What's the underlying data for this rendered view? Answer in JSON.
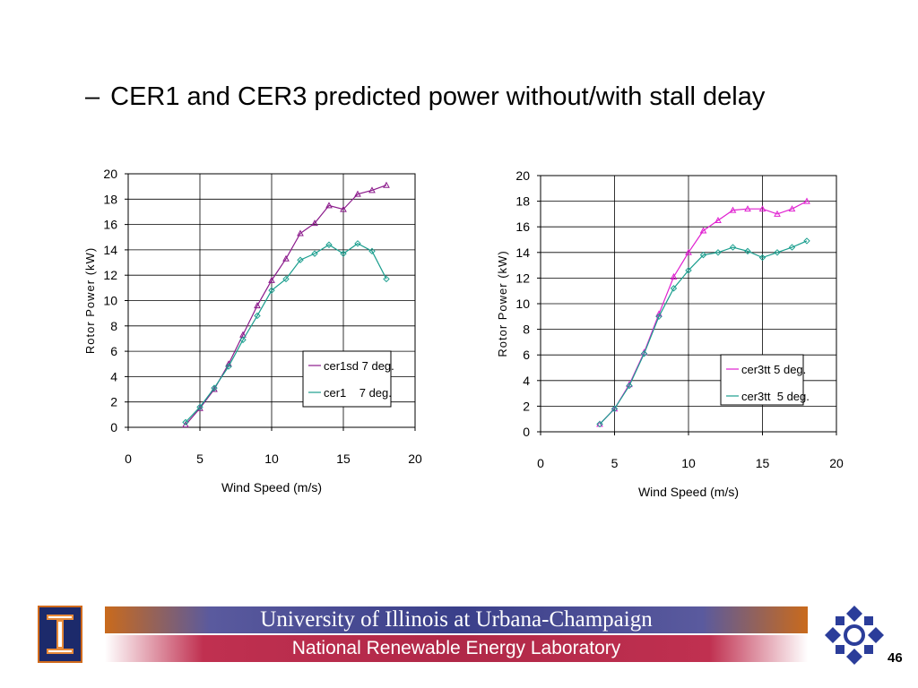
{
  "title": {
    "dash": "–",
    "text": "CER1 and CER3 predicted power without/with stall delay"
  },
  "footer": {
    "university": "University of Illinois at Urbana-Champaign",
    "lab": "National Renewable Energy Laboratory",
    "page": "46"
  },
  "chart_data": [
    {
      "type": "line",
      "xlabel": "Wind Speed (m/s)",
      "ylabel": "Rotor Power (kW)",
      "xlim": [
        0,
        20
      ],
      "ylim": [
        0,
        20
      ],
      "xticks": [
        0,
        5,
        10,
        15,
        20
      ],
      "yticks": [
        0,
        2,
        4,
        6,
        8,
        10,
        12,
        14,
        16,
        18,
        20
      ],
      "grid": true,
      "legend": "lower-right",
      "series": [
        {
          "name": "cer1sd 7 deg.",
          "color": "#8b1a8b",
          "marker": "triangle",
          "x": [
            4,
            5,
            6,
            7,
            8,
            9,
            10,
            11,
            12,
            13,
            14,
            15,
            16,
            17,
            18
          ],
          "y": [
            0.2,
            1.5,
            3.0,
            5.0,
            7.3,
            9.6,
            11.6,
            13.3,
            15.3,
            16.1,
            17.5,
            17.2,
            18.4,
            18.7,
            19.1
          ]
        },
        {
          "name": "cer1    7 deg.",
          "color": "#1a9e8e",
          "marker": "diamond",
          "x": [
            4,
            5,
            6,
            7,
            8,
            9,
            10,
            11,
            12,
            13,
            14,
            15,
            16,
            17,
            18
          ],
          "y": [
            0.4,
            1.6,
            3.1,
            4.8,
            6.9,
            8.8,
            10.8,
            11.7,
            13.2,
            13.7,
            14.4,
            13.7,
            14.5,
            13.9,
            11.7
          ]
        }
      ]
    },
    {
      "type": "line",
      "xlabel": "Wind Speed (m/s)",
      "ylabel": "Rotor Power (kW)",
      "xlim": [
        0,
        20
      ],
      "ylim": [
        0,
        20
      ],
      "xticks": [
        0,
        5,
        10,
        15,
        20
      ],
      "yticks": [
        0,
        2,
        4,
        6,
        8,
        10,
        12,
        14,
        16,
        18,
        20
      ],
      "grid": true,
      "legend": "lower-right",
      "series": [
        {
          "name": "cer3tt 5 deg.",
          "color": "#e020d0",
          "marker": "triangle",
          "x": [
            4,
            5,
            6,
            7,
            8,
            9,
            10,
            11,
            12,
            13,
            14,
            15,
            16,
            17,
            18
          ],
          "y": [
            0.6,
            1.8,
            3.7,
            6.2,
            9.2,
            12.1,
            14.0,
            15.7,
            16.5,
            17.3,
            17.4,
            17.4,
            17.0,
            17.4,
            18.0
          ]
        },
        {
          "name": "cer3tt  5 deg.",
          "color": "#1a9e8e",
          "marker": "diamond",
          "x": [
            4,
            5,
            6,
            7,
            8,
            9,
            10,
            11,
            12,
            13,
            14,
            15,
            16,
            17,
            18
          ],
          "y": [
            0.6,
            1.8,
            3.6,
            6.1,
            9.0,
            11.2,
            12.6,
            13.8,
            14.0,
            14.4,
            14.1,
            13.6,
            14.0,
            14.4,
            14.9
          ]
        }
      ]
    }
  ]
}
